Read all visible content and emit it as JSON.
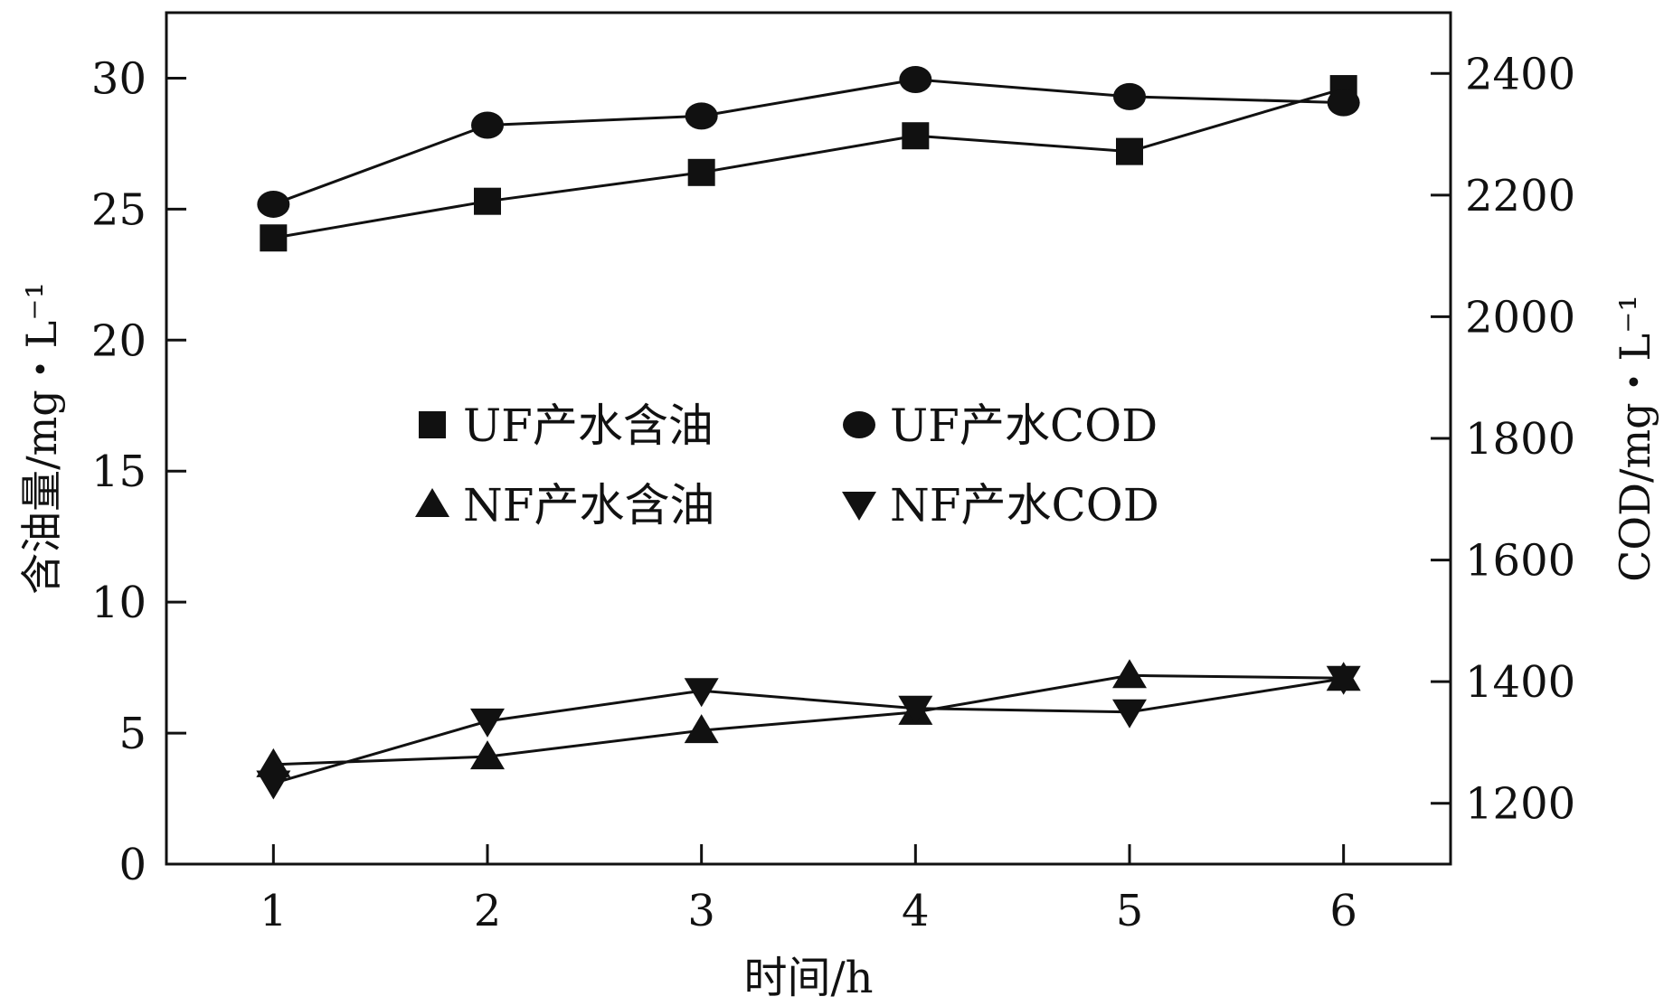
{
  "chart_data": {
    "type": "line",
    "x": [
      1,
      2,
      3,
      4,
      5,
      6
    ],
    "xlabel": "时间/h",
    "ylabel_left": "含油量/mg・L⁻¹",
    "ylabel_right": "COD/mg・L⁻¹",
    "xlim": [
      0.5,
      6.5
    ],
    "ylim_left": [
      0,
      32.5
    ],
    "ylim_right": [
      1100,
      2500
    ],
    "xticks": [
      1,
      2,
      3,
      4,
      5,
      6
    ],
    "yticks_left": [
      0,
      5,
      10,
      15,
      20,
      25,
      30
    ],
    "yticks_right": [
      1200,
      1400,
      1600,
      1800,
      2000,
      2200,
      2400
    ],
    "grid": false,
    "legend_position": "center",
    "series": [
      {
        "name": "UF产水含油",
        "axis": "left",
        "marker": "square",
        "values": [
          23.9,
          25.3,
          26.4,
          27.8,
          27.2,
          29.6
        ]
      },
      {
        "name": "UF产水COD",
        "axis": "right",
        "marker": "circle",
        "values": [
          2185,
          2315,
          2330,
          2390,
          2362,
          2352
        ]
      },
      {
        "name": "NF产水含油",
        "axis": "left",
        "marker": "triangle-up",
        "values": [
          3.8,
          4.1,
          5.1,
          5.8,
          7.2,
          7.1
        ]
      },
      {
        "name": "NF产水COD",
        "axis": "right",
        "marker": "triangle-down",
        "values": [
          1233,
          1335,
          1385,
          1356,
          1350,
          1405
        ]
      }
    ]
  }
}
